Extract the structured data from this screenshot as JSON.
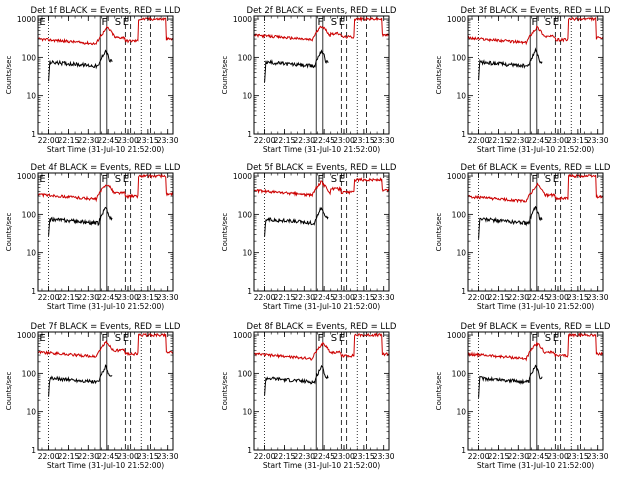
{
  "panels": [
    {
      "title": "Det 1f BLACK = Events, RED = LLD",
      "red_peak": 620,
      "red_pre": 300,
      "red_burst": 1000,
      "events": [
        "E",
        "F",
        "S",
        "E"
      ]
    },
    {
      "title": "Det 2f BLACK = Events, RED = LLD",
      "red_peak": 620,
      "red_pre": 380,
      "red_burst": 1000,
      "events": [
        "F",
        "S",
        "E"
      ]
    },
    {
      "title": "Det 3f BLACK = Events, RED = LLD",
      "red_peak": 620,
      "red_pre": 320,
      "red_burst": 1000,
      "events": [
        "F",
        "S",
        "E"
      ]
    },
    {
      "title": "Det 4f BLACK = Events, RED = LLD",
      "red_peak": 620,
      "red_pre": 330,
      "red_burst": 1000,
      "events": [
        "E",
        "F",
        "S",
        "E"
      ]
    },
    {
      "title": "Det 5f BLACK = Events, RED = LLD",
      "red_peak": 620,
      "red_pre": 420,
      "red_burst": 800,
      "events": [
        "F",
        "S",
        "E"
      ]
    },
    {
      "title": "Det 6f BLACK = Events, RED = LLD",
      "red_peak": 620,
      "red_pre": 290,
      "red_burst": 1000,
      "events": [
        "F",
        "S",
        "E"
      ]
    },
    {
      "title": "Det 7f BLACK = Events, RED = LLD",
      "red_peak": 620,
      "red_pre": 360,
      "red_burst": 1000,
      "events": [
        "E",
        "F",
        "S",
        "E"
      ]
    },
    {
      "title": "Det 8f BLACK = Events, RED = LLD",
      "red_peak": 620,
      "red_pre": 320,
      "red_burst": 1000,
      "events": [
        "F",
        "S",
        "E"
      ]
    },
    {
      "title": "Det 9f BLACK = Events, RED = LLD",
      "red_peak": 620,
      "red_pre": 320,
      "red_burst": 1000,
      "events": [
        "F",
        "S",
        "E"
      ]
    }
  ],
  "chart_data": {
    "type": "line",
    "ylabel": "Counts/sec",
    "xlabel": "Start Time (31-Jul-10 21:52:00)",
    "x_tick_labels": [
      "22:00",
      "22:15",
      "22:30",
      "22:45",
      "23:00",
      "23:15",
      "23:30"
    ],
    "y_tick_labels": [
      "1",
      "10",
      "100",
      "1000"
    ],
    "yscale": "log",
    "ylim": [
      1,
      1200
    ],
    "x_range_minutes_after_start": [
      0,
      102
    ],
    "series": [
      {
        "name": "Events",
        "color": "#000000",
        "x_minutes": [
          8,
          12,
          20,
          30,
          40,
          46,
          47,
          50,
          52,
          54,
          55,
          56
        ],
        "y": [
          30,
          70,
          65,
          60,
          55,
          70,
          90,
          120,
          140,
          110,
          85,
          70
        ]
      },
      {
        "name": "LLD",
        "color": "#cc0000",
        "x_minutes": [
          0,
          10,
          20,
          30,
          40,
          44,
          47,
          50,
          52,
          54,
          56,
          58,
          62,
          65,
          70,
          73,
          76,
          78,
          82,
          86,
          90,
          95,
          98,
          100
        ],
        "y": [
          320,
          340,
          300,
          280,
          260,
          280,
          350,
          450,
          600,
          520,
          450,
          350,
          400,
          300,
          250,
          280,
          550,
          1000,
          1000,
          1000,
          1000,
          1000,
          400,
          350
        ]
      }
    ],
    "vertical_markers": {
      "dotted_minutes": [
        8,
        62,
        78,
        92
      ],
      "solid_minutes": [
        47,
        52
      ],
      "dashed_minutes": [
        66,
        70,
        85
      ]
    }
  }
}
